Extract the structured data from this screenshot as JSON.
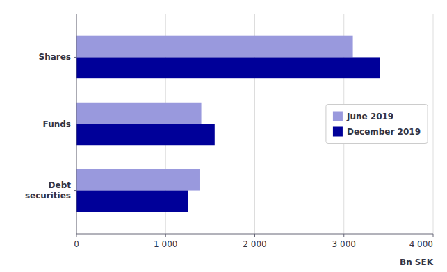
{
  "chart_data": {
    "type": "bar",
    "orientation": "horizontal",
    "categories": [
      "Debt\nsecurities",
      "Funds",
      "Shares"
    ],
    "series": [
      {
        "name": "June 2019",
        "color": "#9999dd",
        "values": [
          1380,
          1400,
          3100
        ]
      },
      {
        "name": "December 2019",
        "color": "#000099",
        "values": [
          1250,
          1550,
          3400
        ]
      }
    ],
    "x_label": "Bn SEK",
    "xlim": [
      0,
      4000
    ],
    "xticks": [
      0,
      {
        "value": 1000,
        "label": "1 000"
      },
      {
        "value": 2000,
        "label": "2 000"
      },
      {
        "value": 3000,
        "label": "3 000"
      },
      {
        "value": 4000,
        "label": "4 000"
      }
    ],
    "grid": true,
    "legend": "center right"
  }
}
